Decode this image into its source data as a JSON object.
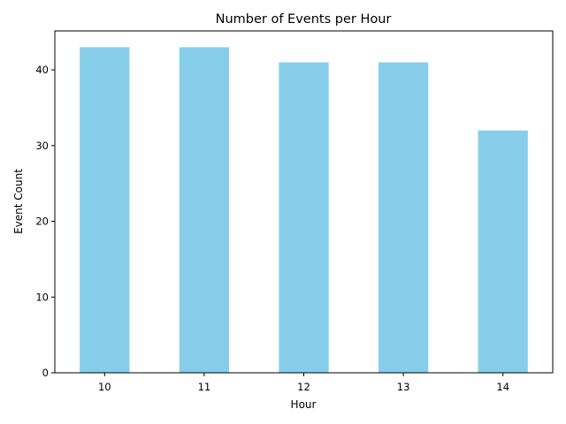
{
  "chart_data": {
    "type": "bar",
    "title": "Number of Events per Hour",
    "xlabel": "Hour",
    "ylabel": "Event Count",
    "categories": [
      "10",
      "11",
      "12",
      "13",
      "14"
    ],
    "values": [
      43,
      43,
      41,
      41,
      32
    ],
    "ylim": [
      0,
      45.15
    ],
    "yticks": [
      "0",
      "10",
      "20",
      "30",
      "40"
    ],
    "bar_color": "#87ceeb",
    "grid": false,
    "legend": "none"
  }
}
